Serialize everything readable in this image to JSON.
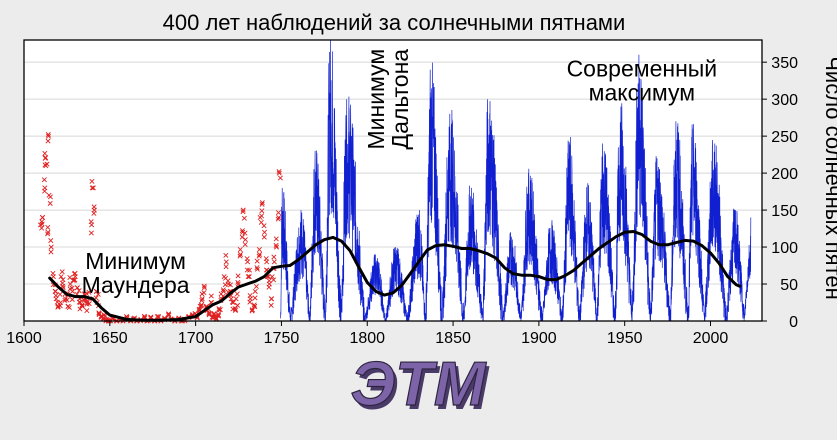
{
  "chart_data": {
    "type": "line",
    "title": "400 лет наблюдений за солнечными пятнами",
    "ylabel": "Число солнечных пятен",
    "xlabel": "",
    "xlim": [
      1600,
      2030
    ],
    "ylim": [
      0,
      380
    ],
    "x_ticks": [
      1600,
      1650,
      1700,
      1750,
      1800,
      1850,
      1900,
      1950,
      2000
    ],
    "y_ticks": [
      0,
      50,
      100,
      150,
      200,
      250,
      300,
      350
    ],
    "y_axis_side": "right",
    "grid": true,
    "annotations": [
      {
        "lines": [
          "Минимум",
          "Маундера"
        ],
        "x": 1665,
        "y": 65
      },
      {
        "lines": [
          "Минимум",
          "Дальтона"
        ],
        "x": 1812,
        "y": 300,
        "rotation": -90
      },
      {
        "lines": [
          "Современный",
          "максимум"
        ],
        "x": 1960,
        "y": 325
      }
    ],
    "series": [
      {
        "kind": "early-observations",
        "marker": "x",
        "color": "#e02020",
        "points": [
          [
            1610,
            130
          ],
          [
            1611,
            140
          ],
          [
            1612,
            180
          ],
          [
            1612,
            220
          ],
          [
            1613,
            210
          ],
          [
            1614,
            120
          ],
          [
            1614,
            250
          ],
          [
            1615,
            170
          ],
          [
            1616,
            100
          ],
          [
            1617,
            60
          ],
          [
            1618,
            40
          ],
          [
            1619,
            30
          ],
          [
            1620,
            20
          ],
          [
            1621,
            25
          ],
          [
            1622,
            60
          ],
          [
            1623,
            45
          ],
          [
            1624,
            30
          ],
          [
            1625,
            35
          ],
          [
            1626,
            20
          ],
          [
            1627,
            50
          ],
          [
            1628,
            40
          ],
          [
            1629,
            55
          ],
          [
            1630,
            60
          ],
          [
            1631,
            45
          ],
          [
            1632,
            30
          ],
          [
            1633,
            25
          ],
          [
            1634,
            20
          ],
          [
            1635,
            30
          ],
          [
            1636,
            35
          ],
          [
            1637,
            25
          ],
          [
            1638,
            30
          ],
          [
            1639,
            130
          ],
          [
            1640,
            180
          ],
          [
            1641,
            150
          ],
          [
            1642,
            40
          ],
          [
            1643,
            25
          ],
          [
            1644,
            10
          ],
          [
            1645,
            5
          ],
          [
            1646,
            3
          ],
          [
            1647,
            8
          ],
          [
            1648,
            2
          ],
          [
            1649,
            0
          ],
          [
            1650,
            0
          ],
          [
            1652,
            3
          ],
          [
            1654,
            0
          ],
          [
            1656,
            2
          ],
          [
            1658,
            0
          ],
          [
            1660,
            5
          ],
          [
            1662,
            0
          ],
          [
            1664,
            3
          ],
          [
            1666,
            0
          ],
          [
            1668,
            2
          ],
          [
            1670,
            5
          ],
          [
            1672,
            0
          ],
          [
            1674,
            4
          ],
          [
            1676,
            0
          ],
          [
            1678,
            6
          ],
          [
            1680,
            0
          ],
          [
            1682,
            3
          ],
          [
            1684,
            8
          ],
          [
            1686,
            2
          ],
          [
            1688,
            0
          ],
          [
            1690,
            4
          ],
          [
            1692,
            0
          ],
          [
            1694,
            2
          ],
          [
            1696,
            5
          ],
          [
            1698,
            8
          ],
          [
            1700,
            10
          ],
          [
            1701,
            5
          ],
          [
            1702,
            15
          ],
          [
            1703,
            20
          ],
          [
            1704,
            30
          ],
          [
            1705,
            45
          ],
          [
            1706,
            20
          ],
          [
            1707,
            15
          ],
          [
            1708,
            10
          ],
          [
            1709,
            25
          ],
          [
            1710,
            5
          ],
          [
            1711,
            10
          ],
          [
            1712,
            3
          ],
          [
            1713,
            8
          ],
          [
            1714,
            15
          ],
          [
            1715,
            30
          ],
          [
            1716,
            40
          ],
          [
            1717,
            60
          ],
          [
            1718,
            80
          ],
          [
            1719,
            50
          ],
          [
            1720,
            40
          ],
          [
            1721,
            30
          ],
          [
            1722,
            25
          ],
          [
            1723,
            15
          ],
          [
            1724,
            30
          ],
          [
            1725,
            50
          ],
          [
            1726,
            90
          ],
          [
            1727,
            120
          ],
          [
            1728,
            150
          ],
          [
            1729,
            110
          ],
          [
            1730,
            80
          ],
          [
            1731,
            60
          ],
          [
            1732,
            30
          ],
          [
            1733,
            15
          ],
          [
            1734,
            20
          ],
          [
            1735,
            40
          ],
          [
            1736,
            70
          ],
          [
            1737,
            90
          ],
          [
            1738,
            140
          ],
          [
            1739,
            160
          ],
          [
            1740,
            120
          ],
          [
            1741,
            80
          ],
          [
            1742,
            60
          ],
          [
            1743,
            50
          ],
          [
            1744,
            30
          ],
          [
            1745,
            60
          ],
          [
            1746,
            80
          ],
          [
            1747,
            100
          ],
          [
            1748,
            140
          ],
          [
            1749,
            200
          ]
        ]
      },
      {
        "kind": "monthly-sunspot-number",
        "marker": "line",
        "color": "#1020d0",
        "cycle_minima": [
          1749.5,
          1755.2,
          1766.5,
          1775.5,
          1784.7,
          1798.3,
          1810.6,
          1823.3,
          1833.9,
          1843.5,
          1856.0,
          1867.2,
          1878.9,
          1889.6,
          1901.7,
          1913.6,
          1923.6,
          1933.8,
          1944.2,
          1954.3,
          1964.9,
          1976.5,
          1986.8,
          1996.4,
          2008.9,
          2019.8
        ],
        "cycle_maxima": [
          1750.3,
          1761.5,
          1769.7,
          1778.4,
          1788.1,
          1805.2,
          1816.4,
          1829.9,
          1837.2,
          1848.1,
          1860.1,
          1870.6,
          1883.9,
          1894.1,
          1907.0,
          1917.6,
          1928.4,
          1937.4,
          1947.5,
          1958.2,
          1968.9,
          1979.9,
          1989.6,
          2001.9,
          2014.3,
          2024.0
        ],
        "cycle_peak_values": [
          180,
          150,
          230,
          380,
          300,
          90,
          100,
          150,
          340,
          280,
          180,
          300,
          120,
          200,
          130,
          240,
          180,
          240,
          290,
          360,
          220,
          270,
          260,
          240,
          150,
          140
        ]
      },
      {
        "kind": "smoothed-trend",
        "marker": "line",
        "color": "#000000",
        "points": [
          [
            1615,
            58
          ],
          [
            1620,
            46
          ],
          [
            1625,
            36
          ],
          [
            1630,
            33
          ],
          [
            1635,
            33
          ],
          [
            1640,
            30
          ],
          [
            1645,
            18
          ],
          [
            1650,
            8
          ],
          [
            1660,
            2
          ],
          [
            1670,
            1
          ],
          [
            1680,
            1
          ],
          [
            1690,
            2
          ],
          [
            1700,
            6
          ],
          [
            1705,
            14
          ],
          [
            1710,
            22
          ],
          [
            1715,
            27
          ],
          [
            1720,
            37
          ],
          [
            1725,
            46
          ],
          [
            1730,
            50
          ],
          [
            1735,
            54
          ],
          [
            1740,
            60
          ],
          [
            1745,
            72
          ],
          [
            1750,
            74
          ],
          [
            1755,
            75
          ],
          [
            1760,
            83
          ],
          [
            1765,
            93
          ],
          [
            1770,
            103
          ],
          [
            1775,
            110
          ],
          [
            1780,
            113
          ],
          [
            1785,
            108
          ],
          [
            1790,
            95
          ],
          [
            1795,
            73
          ],
          [
            1800,
            52
          ],
          [
            1805,
            40
          ],
          [
            1810,
            35
          ],
          [
            1815,
            38
          ],
          [
            1820,
            48
          ],
          [
            1825,
            64
          ],
          [
            1830,
            80
          ],
          [
            1835,
            96
          ],
          [
            1840,
            102
          ],
          [
            1845,
            103
          ],
          [
            1850,
            101
          ],
          [
            1855,
            98
          ],
          [
            1860,
            98
          ],
          [
            1865,
            95
          ],
          [
            1870,
            91
          ],
          [
            1875,
            85
          ],
          [
            1880,
            72
          ],
          [
            1885,
            64
          ],
          [
            1890,
            62
          ],
          [
            1895,
            62
          ],
          [
            1900,
            60
          ],
          [
            1905,
            56
          ],
          [
            1910,
            56
          ],
          [
            1915,
            61
          ],
          [
            1920,
            68
          ],
          [
            1925,
            78
          ],
          [
            1930,
            88
          ],
          [
            1935,
            98
          ],
          [
            1940,
            106
          ],
          [
            1945,
            114
          ],
          [
            1950,
            120
          ],
          [
            1955,
            121
          ],
          [
            1960,
            117
          ],
          [
            1965,
            108
          ],
          [
            1970,
            103
          ],
          [
            1975,
            103
          ],
          [
            1980,
            106
          ],
          [
            1985,
            109
          ],
          [
            1990,
            108
          ],
          [
            1995,
            102
          ],
          [
            2000,
            92
          ],
          [
            2005,
            78
          ],
          [
            2010,
            60
          ],
          [
            2015,
            49
          ],
          [
            2017,
            47
          ]
        ]
      }
    ]
  },
  "logo": {
    "text": "ЭТМ",
    "color": "#7d64a8",
    "shadow_color": "#4a3a68"
  }
}
